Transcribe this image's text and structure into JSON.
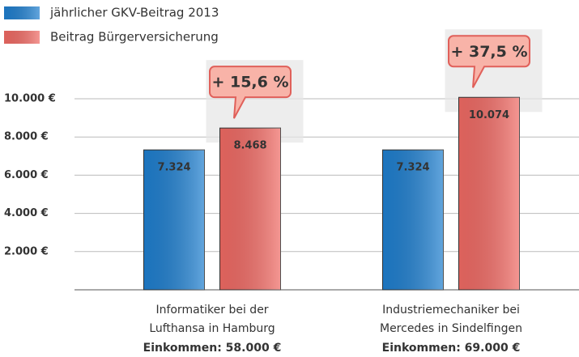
{
  "chart_data": {
    "type": "bar",
    "categories": [
      [
        "Informatiker bei der",
        "Lufthansa in Hamburg"
      ],
      [
        "Industriemechaniker bei",
        "Mercedes in Sindelfingen"
      ]
    ],
    "category_notes": [
      "Einkommen: 58.000 €",
      "Einkommen: 69.000 €"
    ],
    "series": [
      {
        "name": "jährlicher GKV-Beitrag 2013",
        "color": "#1f7fcf",
        "values": [
          7324,
          7324
        ],
        "value_labels": [
          "7.324",
          "7.324"
        ]
      },
      {
        "name": "Beitrag Bürgerversicherung",
        "color": "#f06a64",
        "values": [
          8468,
          10074
        ],
        "value_labels": [
          "8.468",
          "10.074"
        ]
      }
    ],
    "annotations": [
      "+ 15,6 %",
      "+ 37,5 %"
    ],
    "ylim": [
      0,
      10000
    ],
    "yticks": [
      {
        "value": 2000,
        "label": "2.000 €"
      },
      {
        "value": 4000,
        "label": "4.000 €"
      },
      {
        "value": 6000,
        "label": "6.000 €"
      },
      {
        "value": 8000,
        "label": "8.000 €"
      },
      {
        "value": 10000,
        "label": "10.000 €"
      }
    ],
    "grid": true,
    "legend": "top-left"
  }
}
